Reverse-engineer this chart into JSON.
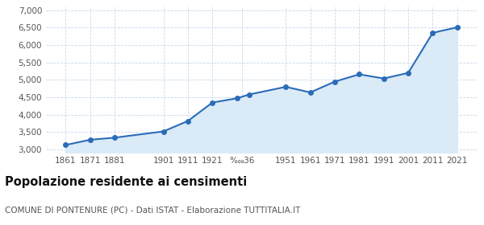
{
  "years": [
    1861,
    1871,
    1881,
    1901,
    1911,
    1921,
    1931,
    1936,
    1951,
    1961,
    1971,
    1981,
    1991,
    2001,
    2011,
    2021
  ],
  "population": [
    3130,
    3280,
    3340,
    3520,
    3820,
    4350,
    4470,
    4580,
    4800,
    4640,
    4950,
    5160,
    5040,
    5200,
    6350,
    6510
  ],
  "x_tick_positions": [
    1861,
    1871,
    1881,
    1901,
    1911,
    1921,
    1933,
    1951,
    1961,
    1971,
    1981,
    1991,
    2001,
    2011,
    2021
  ],
  "x_tick_labels": [
    "1861",
    "1871",
    "1881",
    "1901",
    "1911",
    "1921",
    "‱36",
    "1951",
    "1961",
    "1971",
    "1981",
    "1991",
    "2001",
    "2011",
    "2021"
  ],
  "ylim": [
    2900,
    7100
  ],
  "yticks": [
    3000,
    3500,
    4000,
    4500,
    5000,
    5500,
    6000,
    6500,
    7000
  ],
  "line_color": "#2b6cb8",
  "fill_color": "#daeaf7",
  "marker_color": "#2b6cb8",
  "background_color": "#ffffff",
  "grid_color": "#c5d8ea",
  "title": "Popolazione residente ai censimenti",
  "subtitle": "COMUNE DI PONTENURE (PC) - Dati ISTAT - Elaborazione TUTTITALIA.IT",
  "title_fontsize": 10.5,
  "subtitle_fontsize": 7.5
}
